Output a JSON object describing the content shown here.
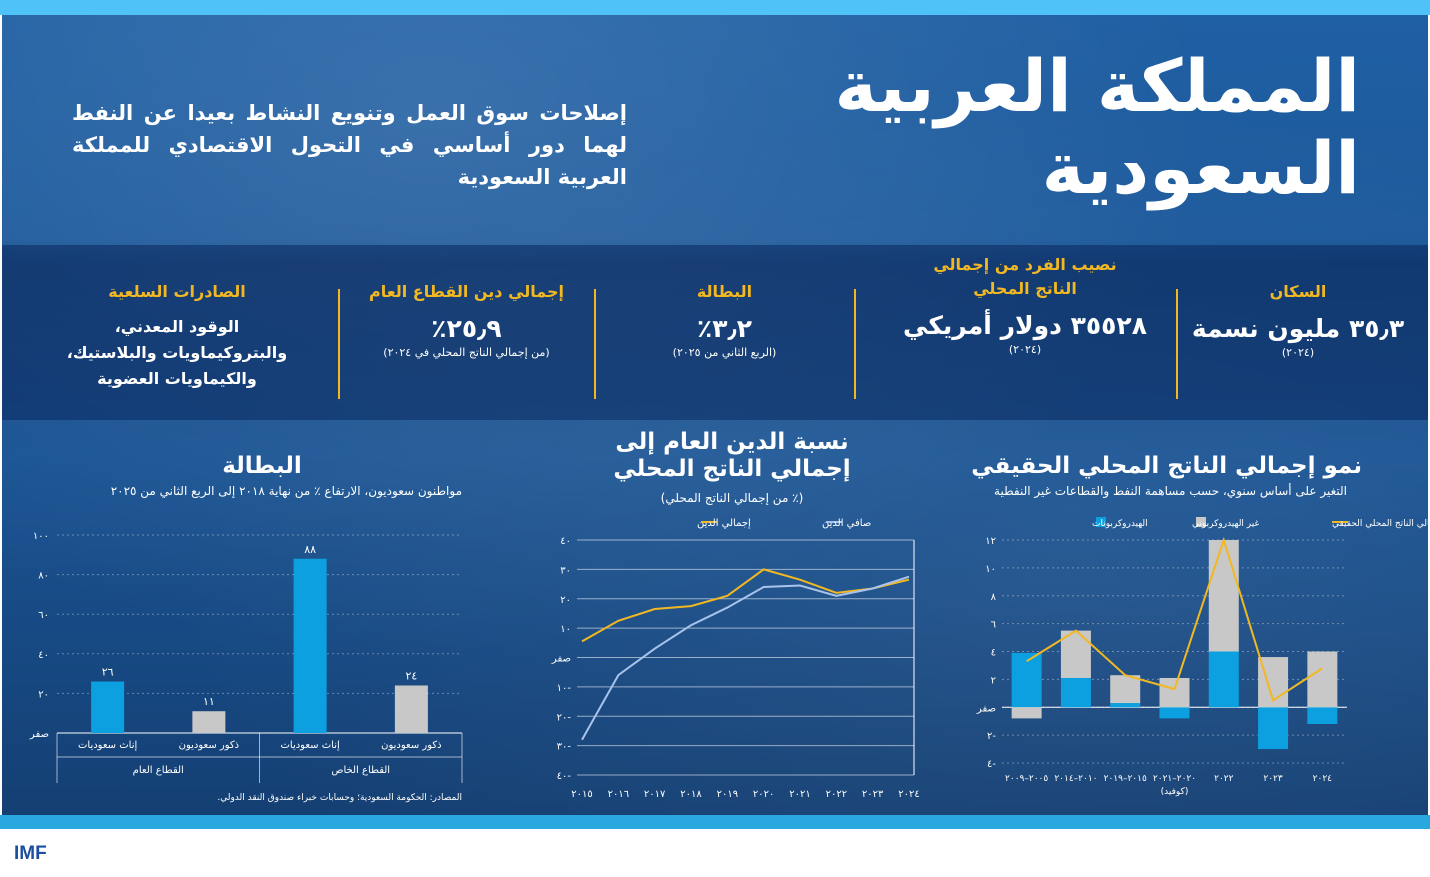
{
  "header": {
    "title": "المملكة العربية السعودية",
    "subtitle": "إصلاحات سوق العمل وتنويع النشاط بعيدا عن النفط لهما دور أساسي في التحول الاقتصادي للمملكة العربية السعودية"
  },
  "stats": [
    {
      "label": "السكان",
      "value": "٣٥٫٣ مليون نسمة",
      "note": "(٢٠٢٤)"
    },
    {
      "label": "نصيب الفرد من إجمالي الناتج المحلي",
      "value": "٣٥٥٢٨ دولار أمريكي",
      "note": "(٢٠٢٤)"
    },
    {
      "label": "البطالة",
      "value": "٣٫٢٪",
      "note": "(الربع الثاني من ٢٠٢٥)"
    },
    {
      "label": "إجمالي دين القطاع العام",
      "value": "٢٥٫٩٪",
      "note": "(من إجمالي الناتج المحلي في ٢٠٢٤)"
    },
    {
      "label": "الصادرات السلعية",
      "value": "الوقود المعدني، والبتروكيماويات والبلاستيك، والكيماويات العضوية",
      "note": ""
    }
  ],
  "colors": {
    "accent": "#f2b821",
    "blue": "#0da0e0",
    "gray": "#c8c8c8",
    "lightline": "#a9c4ec"
  },
  "source": "المصادر: الحكومة السعودية؛ وحسابات خبراء صندوق النقد الدولي.",
  "brand": "IMF",
  "chart_data": [
    {
      "type": "bar",
      "title": "البطالة",
      "subtitle": "مواطنون سعوديون، الارتفاع ٪ من نهاية ٢٠١٨ إلى الربع الثاني من ٢٠٢٥",
      "ylim": [
        0,
        100
      ],
      "yticks": [
        "صفر",
        "٢٠",
        "٤٠",
        "٦٠",
        "٨٠",
        "١٠٠"
      ],
      "categories": [
        "إناث سعوديات",
        "ذكور سعوديون",
        "إناث سعوديات",
        "ذكور سعوديون"
      ],
      "groups": [
        "القطاع العام",
        "القطاع الخاص"
      ],
      "values": [
        26,
        11,
        88,
        24
      ],
      "value_labels": [
        "٢٦",
        "١١",
        "٨٨",
        "٢٤"
      ],
      "bar_colors": [
        "#0da0e0",
        "#c8c8c8",
        "#0da0e0",
        "#c8c8c8"
      ]
    },
    {
      "type": "line",
      "title": "نسبة الدين العام إلى إجمالي الناتج المحلي",
      "subtitle": "(٪ من إجمالي الناتج المحلي)",
      "ylim": [
        -40,
        40
      ],
      "yticks": [
        "٤٠-",
        "٣٠-",
        "٢٠-",
        "١٠-",
        "صفر",
        "١٠",
        "٢٠",
        "٣٠",
        "٤٠"
      ],
      "x": [
        "٢٠١٥",
        "٢٠١٦",
        "٢٠١٧",
        "٢٠١٨",
        "٢٠١٩",
        "٢٠٢٠",
        "٢٠٢١",
        "٢٠٢٢",
        "٢٠٢٣",
        "٢٠٢٤"
      ],
      "series": [
        {
          "name": "إجمالي الدين",
          "color": "#f2b821",
          "values": [
            5.5,
            12.5,
            16.5,
            17.5,
            21,
            30,
            26.5,
            22,
            23.5,
            26.5
          ]
        },
        {
          "name": "صافي الدين",
          "color": "#a9c4ec",
          "values": [
            -28,
            -6,
            3,
            11,
            17,
            24,
            24.5,
            21,
            23.5,
            27.5
          ]
        }
      ]
    },
    {
      "type": "bar",
      "title": "نمو إجمالي الناتج المحلي الحقيقي",
      "subtitle": "التغير على أساس سنوي، حسب مساهمة النفط والقطاعات غير النفطية",
      "ylim": [
        -4,
        12
      ],
      "yticks": [
        "٤-",
        "٢-",
        "صفر",
        "٢",
        "٤",
        "٦",
        "٨",
        "١٠",
        "١٢"
      ],
      "categories": [
        "٢٠٠٥–٢٠٠٩",
        "٢٠١٠–٢٠١٤",
        "٢٠١٥–٢٠١٩",
        "٢٠٢٠–٢٠٢١ (كوفيد)",
        "٢٠٢٢",
        "٢٠٢٣",
        "٢٠٢٤"
      ],
      "series": [
        {
          "name": "الهيدروكربونات",
          "color": "#0da0e0",
          "values": [
            3.9,
            2.1,
            0.3,
            -0.8,
            4.0,
            -3.0,
            -1.2
          ]
        },
        {
          "name": "غير الهيدروكربوني",
          "color": "#c8c8c8",
          "values": [
            -0.8,
            3.4,
            2.0,
            2.1,
            8.0,
            3.6,
            4.0
          ]
        },
        {
          "name": "نمو إجمالي الناتج المحلي الحقيقي",
          "color": "#f2b821",
          "values": [
            3.3,
            5.5,
            2.3,
            1.3,
            12.0,
            0.5,
            2.8
          ]
        }
      ]
    }
  ]
}
